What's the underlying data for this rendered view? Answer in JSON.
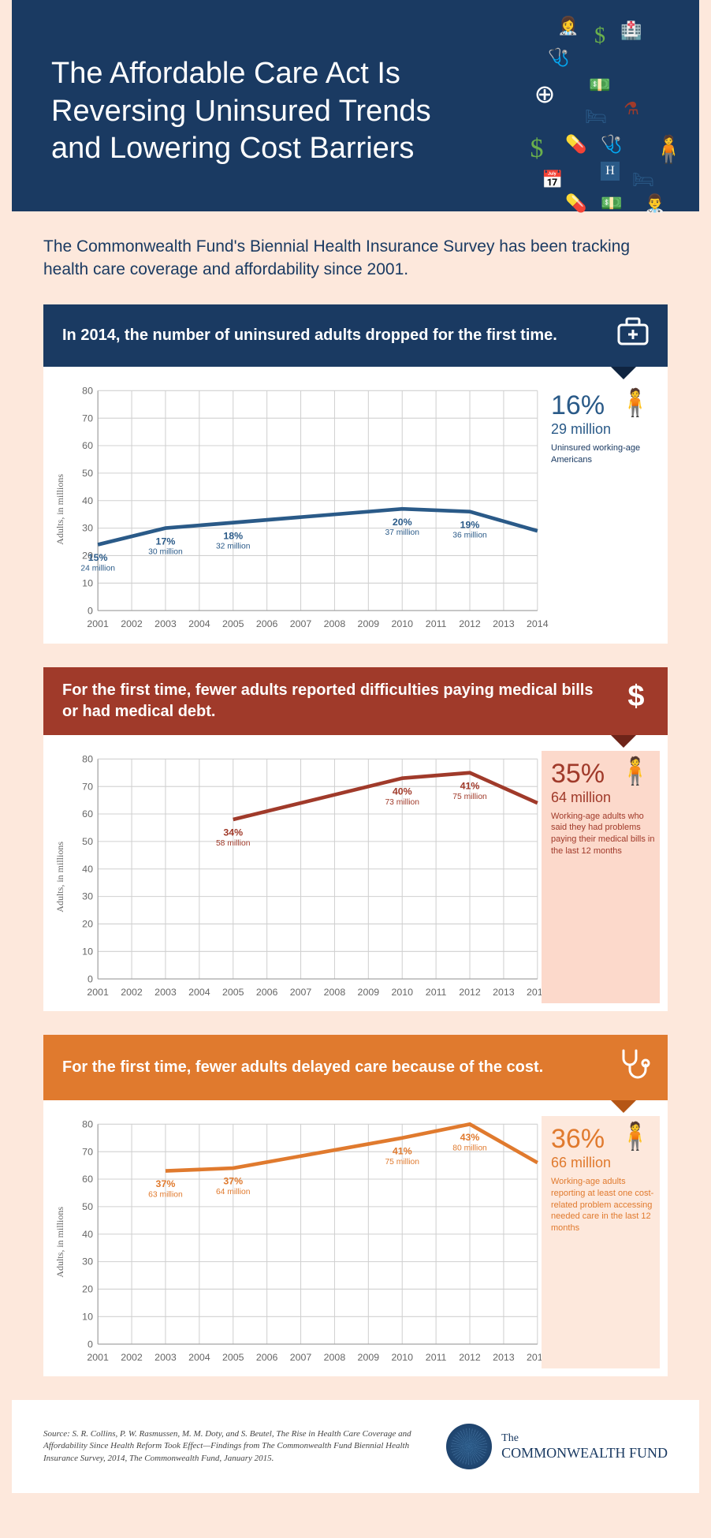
{
  "header": {
    "title": "The Affordable Care Act Is Reversing Uninsured Trends and Lowering Cost Barriers"
  },
  "intro": "The Commonwealth Fund's Biennial Health Insurance Survey has been tracking health care coverage and affordability since 2001.",
  "charts": {
    "shared": {
      "ylabel": "Adults, in millions",
      "ylim": [
        0,
        80
      ],
      "ytick_step": 10,
      "xticks": [
        2001,
        2002,
        2003,
        2004,
        2005,
        2006,
        2007,
        2008,
        2009,
        2010,
        2011,
        2012,
        2013,
        2014
      ],
      "background_color": "#ffffff",
      "grid_color": "#d0d0d0",
      "axis_color": "#999999",
      "tick_fontsize": 12,
      "line_width": 4.5
    },
    "c1": {
      "type": "line",
      "banner": "In 2014, the number of uninsured adults dropped for the first time.",
      "banner_icon": "medkit-icon",
      "banner_color": "#1a3a62",
      "series_color": "#2a5a88",
      "points": [
        {
          "year": 2001,
          "value": 24,
          "pct": "15%",
          "label": "24 million"
        },
        {
          "year": 2003,
          "value": 30,
          "pct": "17%",
          "label": "30 million"
        },
        {
          "year": 2005,
          "value": 32,
          "pct": "18%",
          "label": "32 million"
        },
        {
          "year": 2010,
          "value": 37,
          "pct": "20%",
          "label": "37 million"
        },
        {
          "year": 2012,
          "value": 36,
          "pct": "19%",
          "label": "36 million"
        },
        {
          "year": 2014,
          "value": 29,
          "pct": "16%",
          "label": "29 million"
        }
      ],
      "callout": {
        "pct": "16%",
        "value": "29 million",
        "desc": "Uninsured working-age Americans"
      }
    },
    "c2": {
      "type": "line",
      "banner": "For the first time, fewer adults reported difficulties paying medical bills or had medical debt.",
      "banner_icon": "dollar-icon",
      "banner_color": "#a03a2a",
      "series_color": "#a03a2a",
      "points": [
        {
          "year": 2005,
          "value": 58,
          "pct": "34%",
          "label": "58 million"
        },
        {
          "year": 2010,
          "value": 73,
          "pct": "40%",
          "label": "73 million"
        },
        {
          "year": 2012,
          "value": 75,
          "pct": "41%",
          "label": "75 million"
        },
        {
          "year": 2014,
          "value": 64,
          "pct": "35%",
          "label": "64 million"
        }
      ],
      "callout": {
        "pct": "35%",
        "value": "64 million",
        "desc": "Working-age adults who said they had problems paying their medical bills in the last 12 months"
      }
    },
    "c3": {
      "type": "line",
      "banner": "For the first time, fewer adults delayed care because of the cost.",
      "banner_icon": "stethoscope-icon",
      "banner_color": "#e07a2e",
      "series_color": "#e07a2e",
      "points": [
        {
          "year": 2003,
          "value": 63,
          "pct": "37%",
          "label": "63 million"
        },
        {
          "year": 2005,
          "value": 64,
          "pct": "37%",
          "label": "64 million"
        },
        {
          "year": 2010,
          "value": 75,
          "pct": "41%",
          "label": "75 million"
        },
        {
          "year": 2012,
          "value": 80,
          "pct": "43%",
          "label": "80 million"
        },
        {
          "year": 2014,
          "value": 66,
          "pct": "36%",
          "label": "66 million"
        }
      ],
      "callout": {
        "pct": "36%",
        "value": "66 million",
        "desc": "Working-age adults reporting at least one cost-related problem accessing needed care in the last 12 months"
      }
    }
  },
  "footer": {
    "source": "Source: S. R. Collins, P. W. Rasmussen, M. M. Doty, and S. Beutel, The Rise in Health Care Coverage and Affordability Since Health Reform Took Effect—Findings from The Commonwealth Fund Biennial Health Insurance Survey, 2014, The Commonwealth Fund, January 2015.",
    "logo_the": "The",
    "logo_name": "COMMONWEALTH FUND"
  }
}
